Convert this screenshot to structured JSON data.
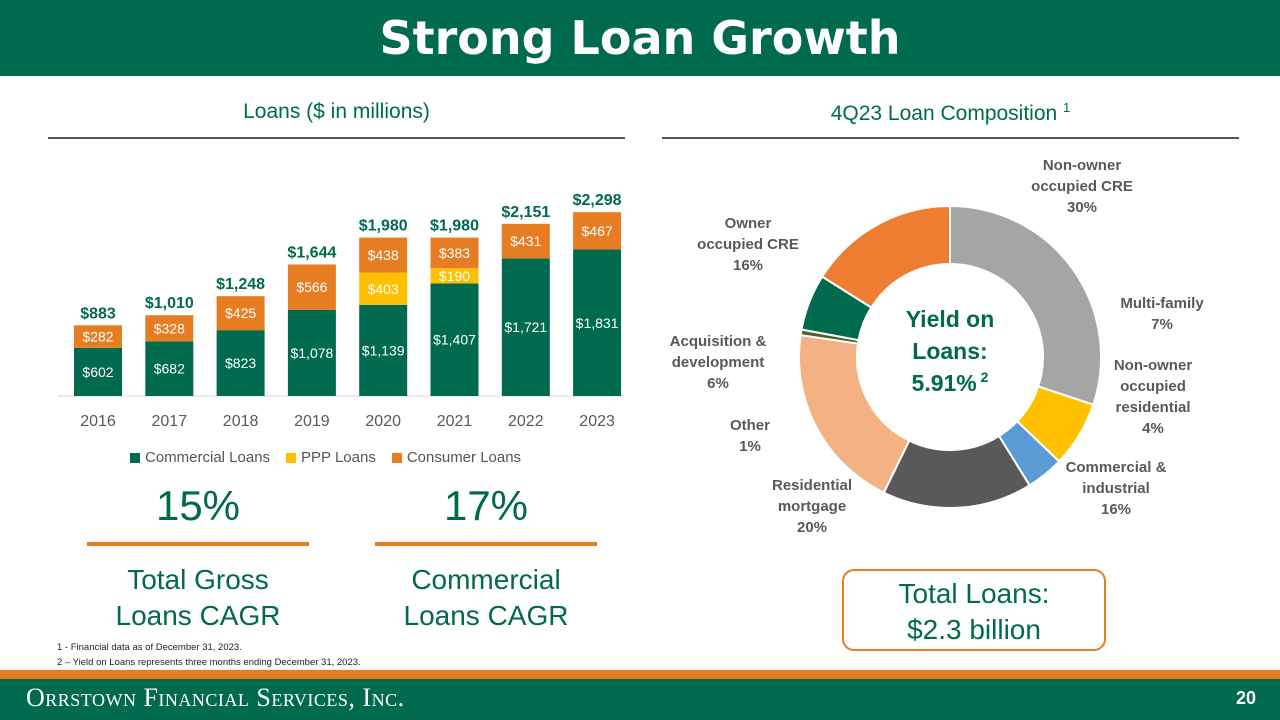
{
  "title": "Strong Loan Growth",
  "left_heading": "Loans ($ in millions)",
  "right_heading": "4Q23 Loan Composition",
  "right_heading_sup": "1",
  "metrics": [
    {
      "value": "15%",
      "label_line1": "Total Gross",
      "label_line2": "Loans CAGR"
    },
    {
      "value": "17%",
      "label_line1": "Commercial",
      "label_line2": "Loans CAGR"
    }
  ],
  "total_box": {
    "line1": "Total Loans:",
    "line2": "$2.3 billion"
  },
  "footnotes": [
    "1 -  Financial data as of December 31, 2023.",
    "2 – Yield on Loans represents three months ending December 31, 2023."
  ],
  "footer": {
    "company": "Orrstown Financial Services, Inc.",
    "page": "20"
  },
  "colors": {
    "green": "#006a4e",
    "orange": "#e77d23",
    "yellow": "#ffc000"
  },
  "chart_data": [
    {
      "type": "bar",
      "stacked": true,
      "title": "Loans ($ in millions)",
      "categories": [
        "2016",
        "2017",
        "2018",
        "2019",
        "2020",
        "2021",
        "2022",
        "2023"
      ],
      "series": [
        {
          "name": "Commercial Loans",
          "color": "#006a4e",
          "values": [
            602,
            682,
            823,
            1078,
            1139,
            1407,
            1721,
            1831
          ],
          "labels": [
            "$602",
            "$682",
            "$823",
            "$1,078",
            "$1,139",
            "$1,407",
            "$1,721",
            "$1,831"
          ]
        },
        {
          "name": "PPP Loans",
          "color": "#ffc000",
          "values": [
            0,
            0,
            0,
            0,
            403,
            190,
            0,
            0
          ],
          "labels": [
            "",
            "",
            "",
            "",
            "$403",
            "$190",
            "",
            ""
          ]
        },
        {
          "name": "Consumer Loans",
          "color": "#e77d23",
          "values": [
            282,
            328,
            425,
            566,
            438,
            383,
            431,
            467
          ],
          "labels": [
            "$282",
            "$328",
            "$425",
            "$566",
            "$438",
            "$383",
            "$431",
            "$467"
          ]
        }
      ],
      "totals": [
        "$883",
        "$1,010",
        "$1,248",
        "$1,644",
        "$1,980",
        "$1,980",
        "$2,151",
        "$2,298"
      ],
      "ylim": [
        0,
        2400
      ],
      "grid": false,
      "legend_position": "bottom"
    },
    {
      "type": "pie",
      "donut": true,
      "title": "4Q23 Loan Composition",
      "center_text": [
        "Yield on",
        "Loans:",
        "5.91%"
      ],
      "center_sup": "2",
      "slices": [
        {
          "label": [
            "Non-owner",
            "occupied CRE",
            "30%"
          ],
          "value": 30,
          "color": "#a5a5a5"
        },
        {
          "label": [
            "Multi-family",
            "7%"
          ],
          "value": 7,
          "color": "#ffc000"
        },
        {
          "label": [
            "Non-owner",
            "occupied",
            "residential",
            "4%"
          ],
          "value": 4,
          "color": "#5b9bd5"
        },
        {
          "label": [
            "Commercial &",
            "industrial",
            "16%"
          ],
          "value": 16,
          "color": "#595959"
        },
        {
          "label": [
            "Residential",
            "mortgage",
            "20%"
          ],
          "value": 20,
          "color": "#f4b183"
        },
        {
          "label": [
            "Other",
            "1%"
          ],
          "value": 0.6,
          "color": "#4f6228"
        },
        {
          "label": [
            "Acquisition &",
            "development",
            "6%"
          ],
          "value": 6,
          "color": "#006a4e"
        },
        {
          "label": [
            "Owner",
            "occupied CRE",
            "16%"
          ],
          "value": 16,
          "color": "#ed7d31"
        }
      ]
    }
  ]
}
